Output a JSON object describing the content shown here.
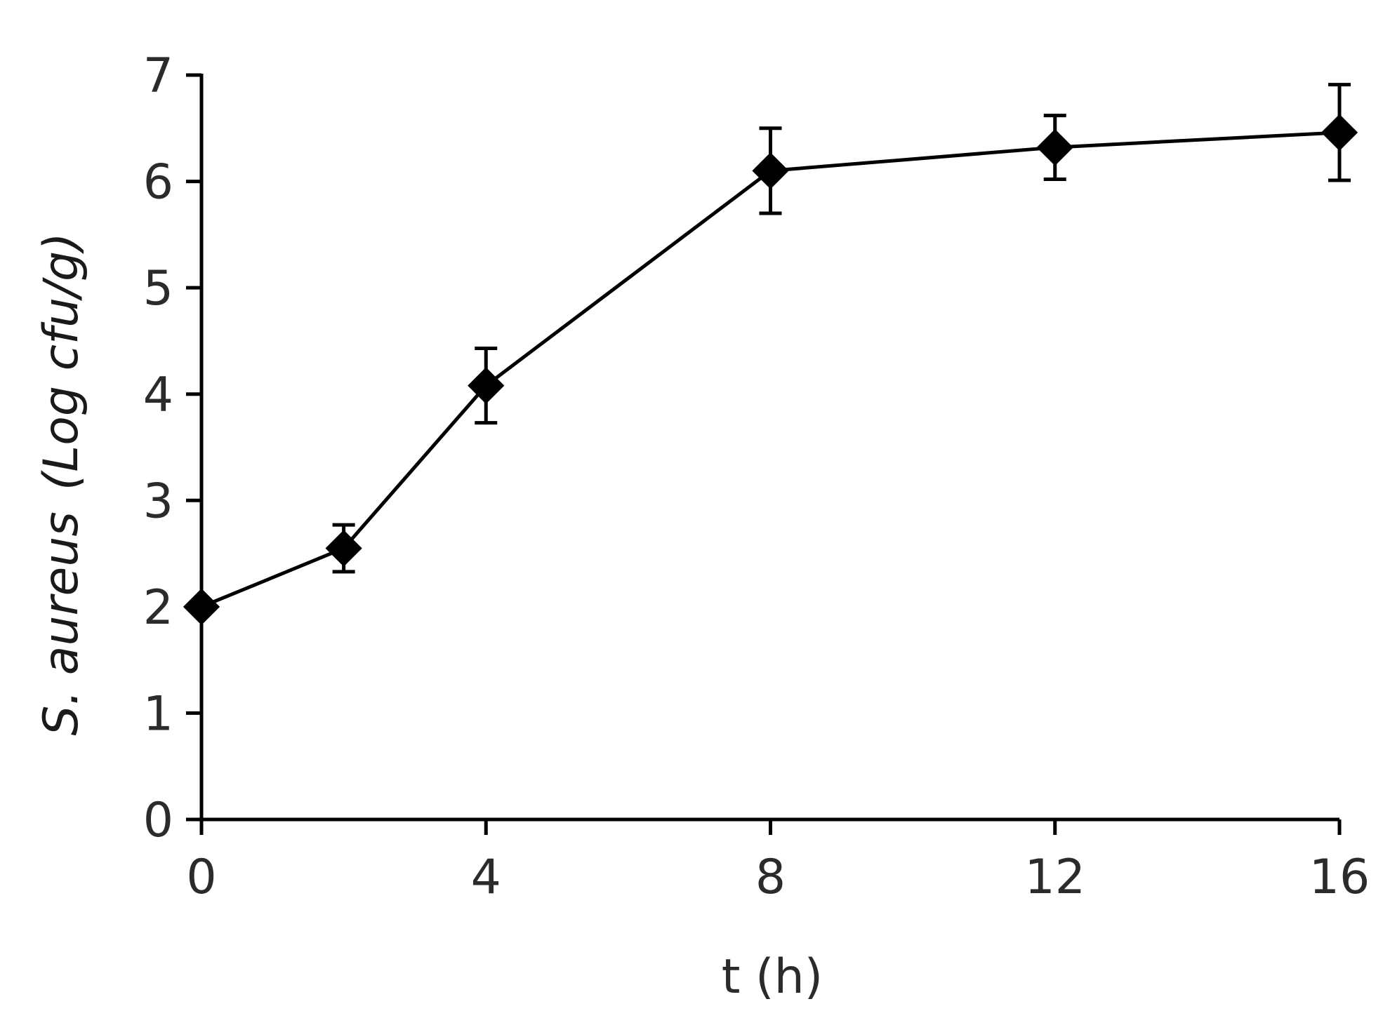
{
  "chart_data": {
    "type": "line",
    "title": "",
    "xlabel": "t (h)",
    "ylabel_species": "S. aureus",
    "ylabel_unit": "(Log cfu/g)",
    "xlim": [
      0,
      16
    ],
    "ylim": [
      0,
      7
    ],
    "x_ticks": [
      0,
      4,
      8,
      12,
      16
    ],
    "y_ticks": [
      0,
      1,
      2,
      3,
      4,
      5,
      6,
      7
    ],
    "grid": false,
    "series": [
      {
        "x": [
          0,
          2,
          4,
          8,
          12,
          16
        ],
        "y": [
          2.0,
          2.55,
          4.08,
          6.1,
          6.32,
          6.46
        ],
        "error": [
          0.0,
          0.22,
          0.35,
          0.4,
          0.3,
          0.45
        ],
        "marker": "diamond",
        "color": "#000000"
      }
    ]
  }
}
